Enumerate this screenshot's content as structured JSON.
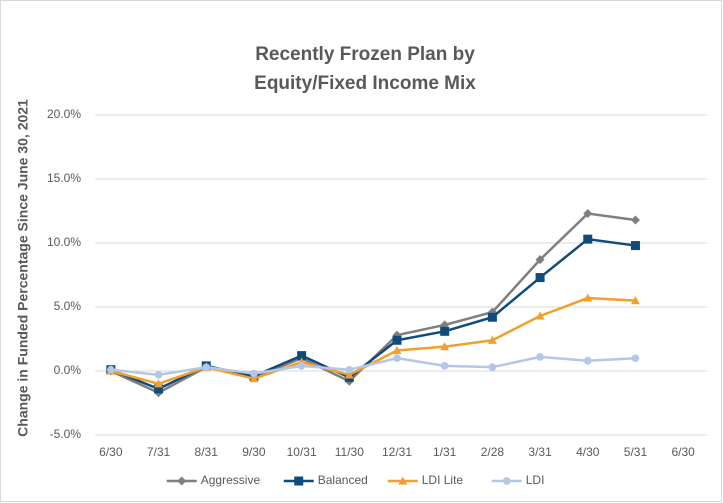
{
  "chart_data": {
    "type": "line",
    "title": [
      "Recently Frozen Plan by",
      "Equity/Fixed Income Mix"
    ],
    "y_label": "Change in Funded Percentage Since June 30, 2021",
    "categories": [
      "6/30",
      "7/31",
      "8/31",
      "9/30",
      "10/31",
      "11/30",
      "12/31",
      "1/31",
      "2/28",
      "3/31",
      "4/30",
      "5/31",
      "6/30"
    ],
    "series": [
      {
        "name": "Aggressive",
        "color": "#7f7f7f",
        "marker": "diamond",
        "values": [
          0,
          -1.7,
          0.3,
          -0.5,
          1.0,
          -0.8,
          2.8,
          3.6,
          4.6,
          8.7,
          12.3,
          11.8,
          null
        ]
      },
      {
        "name": "Balanced",
        "color": "#0f4c7c",
        "marker": "square",
        "values": [
          0.1,
          -1.4,
          0.4,
          -0.4,
          1.2,
          -0.5,
          2.4,
          3.1,
          4.2,
          7.3,
          10.3,
          9.8,
          null
        ]
      },
      {
        "name": "LDI Lite",
        "color": "#f0a030",
        "marker": "triangle",
        "values": [
          0,
          -1.0,
          0.3,
          -0.6,
          0.7,
          -0.3,
          1.6,
          1.9,
          2.4,
          4.3,
          5.7,
          5.5,
          null
        ]
      },
      {
        "name": "LDI",
        "color": "#b4c7e7",
        "marker": "circle",
        "values": [
          0.1,
          -0.3,
          0.3,
          -0.2,
          0.4,
          0.1,
          1.0,
          0.4,
          0.3,
          1.1,
          0.8,
          1.0,
          null
        ]
      }
    ],
    "ylim": [
      -5,
      20
    ],
    "yticks": [
      {
        "value": -5,
        "label": "-5.0%"
      },
      {
        "value": 0,
        "label": "0.0%"
      },
      {
        "value": 5,
        "label": "5.0%"
      },
      {
        "value": 10,
        "label": "10.0%"
      },
      {
        "value": 15,
        "label": "15.0%"
      },
      {
        "value": 20,
        "label": "20.0%"
      }
    ],
    "grid": true,
    "legend": "bottom"
  }
}
